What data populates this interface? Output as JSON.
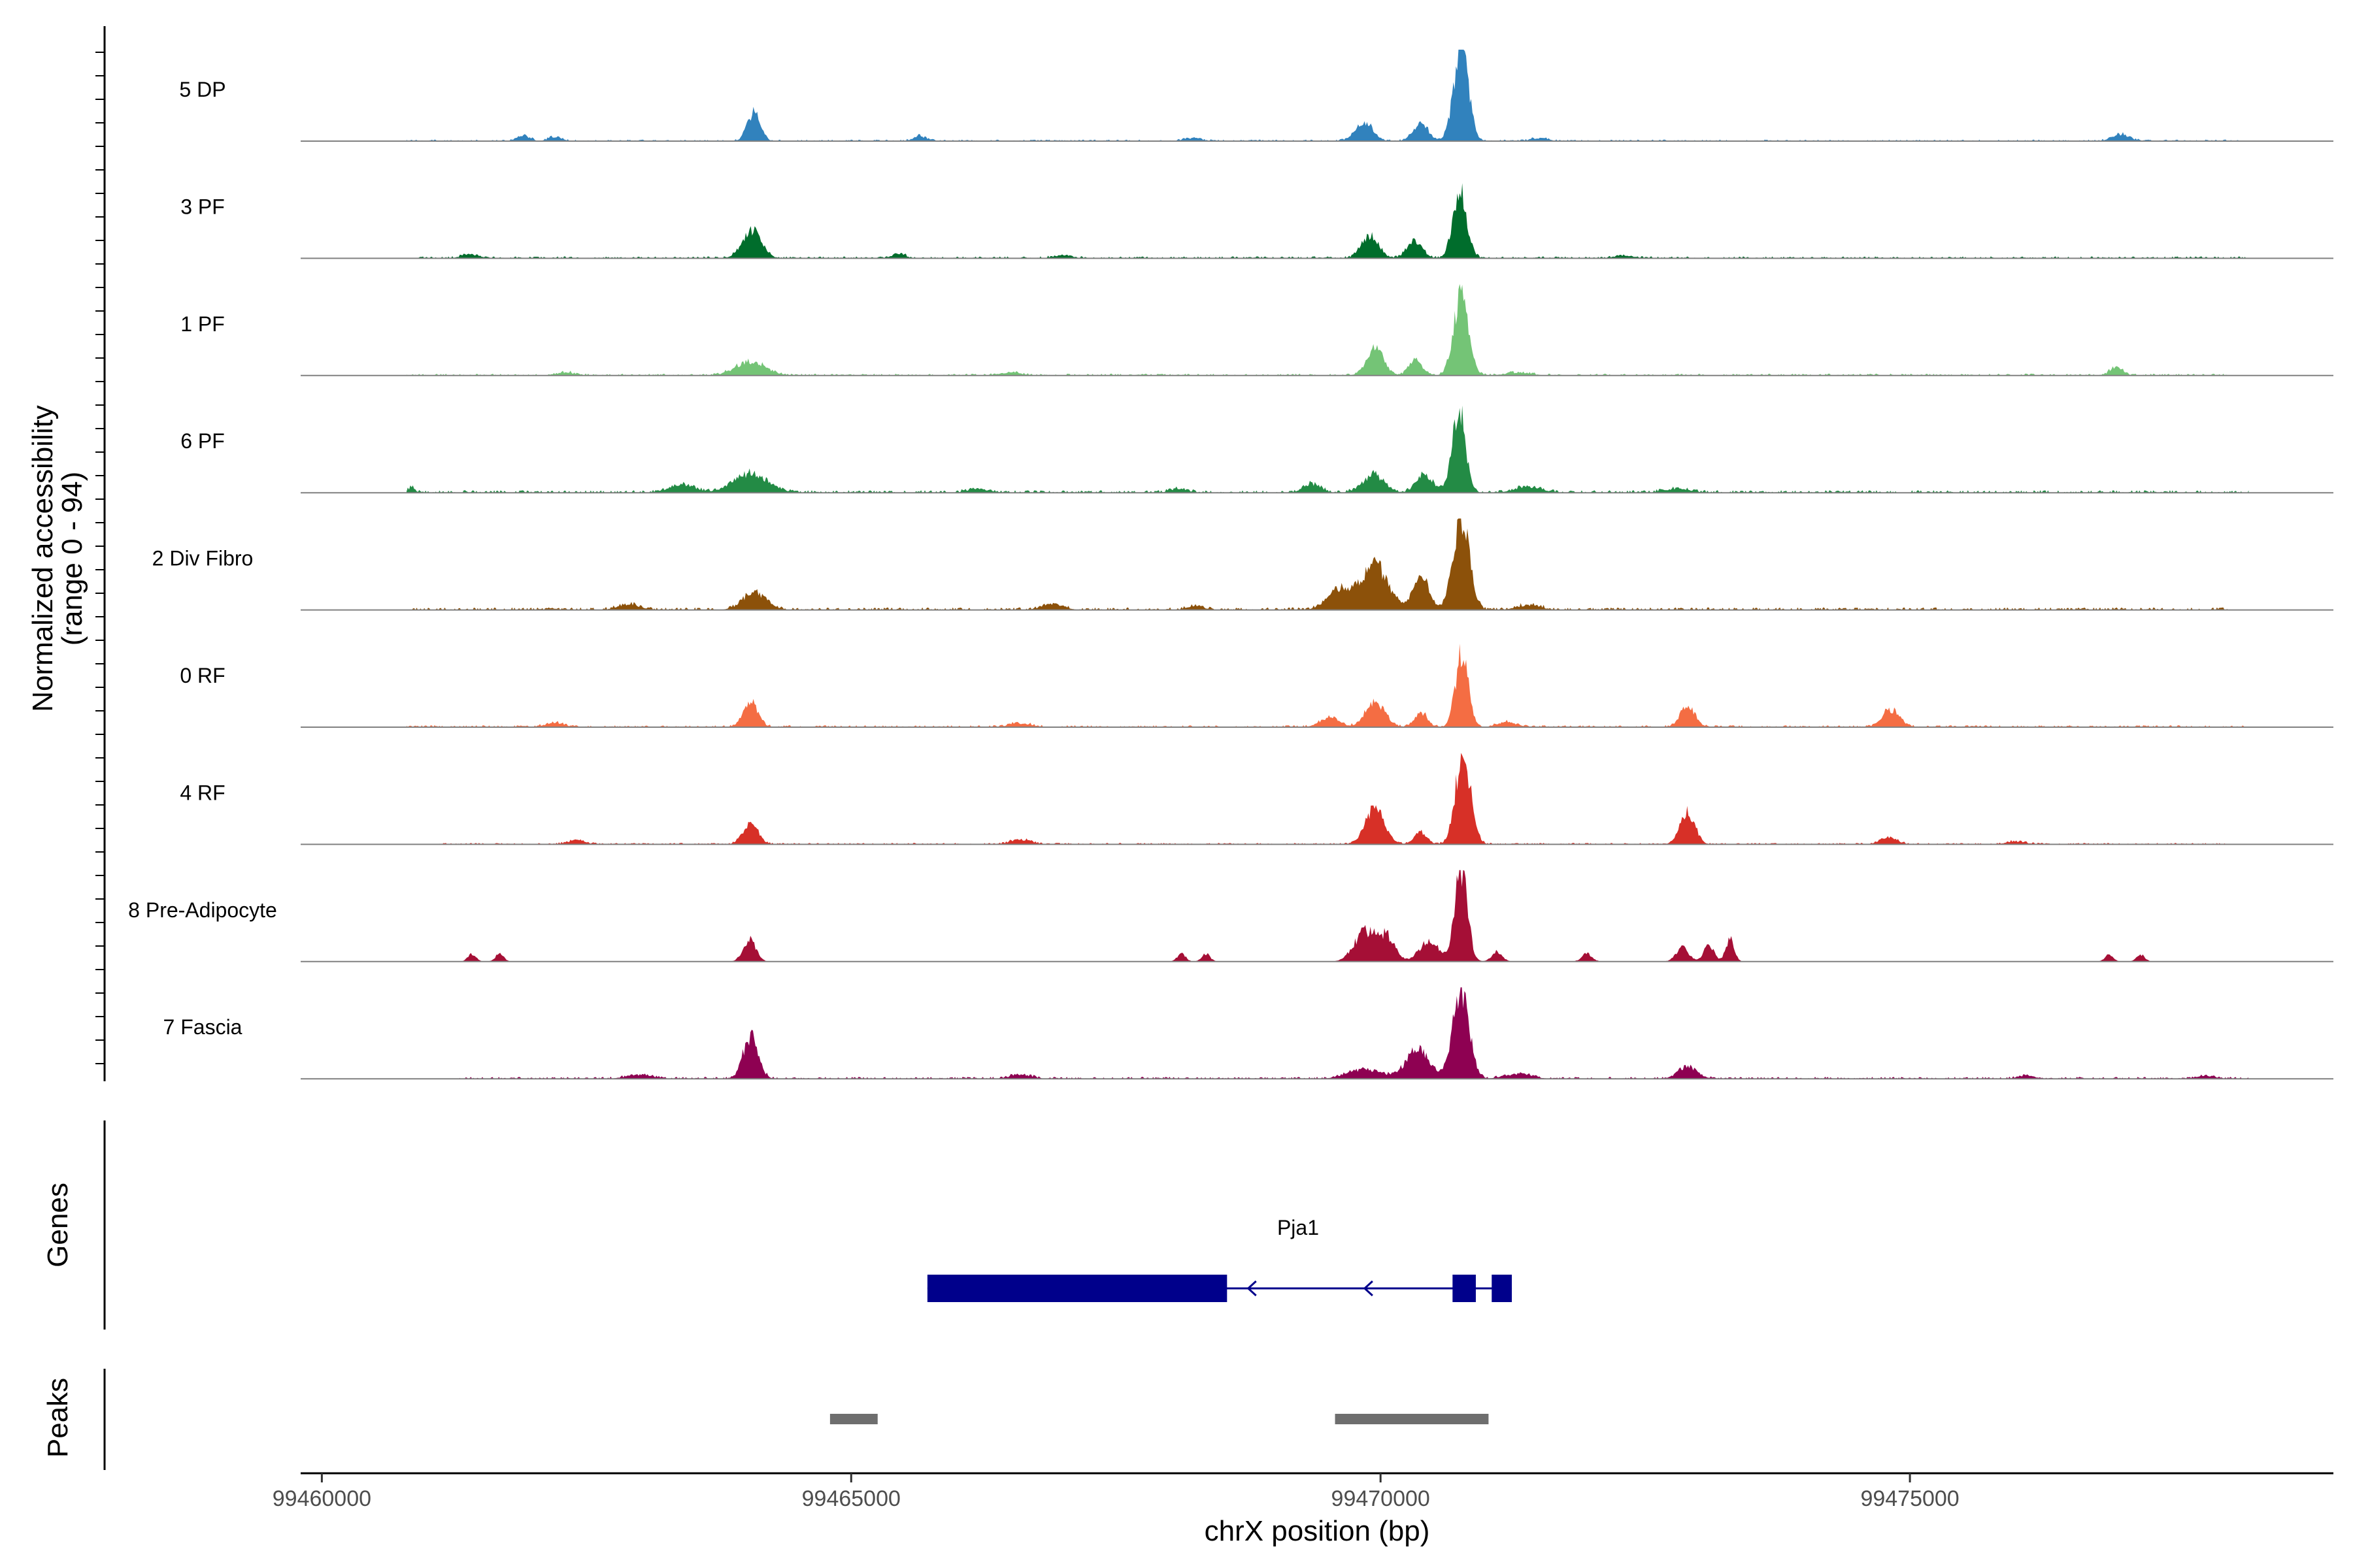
{
  "chart_data": {
    "type": "area",
    "title": "",
    "xlabel": "chrX position (bp)",
    "ylabel": "Normalized accessibility",
    "ylabel_range": "(range 0 - 94)",
    "xlim": [
      99459800,
      99479000
    ],
    "ylim": [
      0,
      94
    ],
    "x_ticks": [
      99460000,
      99465000,
      99470000,
      99475000
    ],
    "x_tick_labels": [
      "99460000",
      "99465000",
      "99470000",
      "99475000"
    ],
    "tracks": [
      {
        "name": "5 DP",
        "color": "#3182bd",
        "peaks": [
          [
            99464080,
            30,
            60
          ],
          [
            99469840,
            20,
            80
          ],
          [
            99470380,
            18,
            70
          ],
          [
            99470760,
            92,
            70
          ],
          [
            99461900,
            6,
            60
          ],
          [
            99476990,
            7,
            80
          ],
          [
            99465650,
            5,
            60
          ],
          [
            99468220,
            3,
            80
          ],
          [
            99471500,
            3,
            80
          ],
          [
            99462200,
            4,
            60
          ]
        ],
        "floor": 1.2,
        "range": [
          99460800,
          99478200
        ]
      },
      {
        "name": "3 PF",
        "color": "#006d2c",
        "peaks": [
          [
            99464060,
            28,
            90
          ],
          [
            99469900,
            22,
            80
          ],
          [
            99470320,
            18,
            70
          ],
          [
            99470750,
            68,
            65
          ],
          [
            99465450,
            5,
            60
          ],
          [
            99461400,
            4,
            80
          ],
          [
            99472300,
            3,
            90
          ],
          [
            99467000,
            3,
            80
          ]
        ],
        "floor": 1.5,
        "range": [
          99460800,
          99478200
        ]
      },
      {
        "name": "1 PF",
        "color": "#74c476",
        "peaks": [
          [
            99464050,
            14,
            140
          ],
          [
            99469950,
            28,
            80
          ],
          [
            99470330,
            16,
            60
          ],
          [
            99470760,
            82,
            70
          ],
          [
            99476950,
            8,
            60
          ],
          [
            99462300,
            3,
            90
          ],
          [
            99466500,
            3,
            100
          ],
          [
            99471300,
            3,
            120
          ]
        ],
        "floor": 1.5,
        "range": [
          99460800,
          99478000
        ]
      },
      {
        "name": "6 PF",
        "color": "#238b45",
        "peaks": [
          [
            99464050,
            20,
            160
          ],
          [
            99463400,
            8,
            120
          ],
          [
            99469930,
            18,
            100
          ],
          [
            99470420,
            18,
            80
          ],
          [
            99470740,
            90,
            60
          ],
          [
            99469350,
            9,
            80
          ],
          [
            99471400,
            6,
            120
          ],
          [
            99472800,
            4,
            120
          ],
          [
            99460850,
            6,
            30
          ],
          [
            99466200,
            4,
            100
          ],
          [
            99468100,
            4,
            80
          ]
        ],
        "floor": 2,
        "range": [
          99460800,
          99478200
        ]
      },
      {
        "name": "2 Div Fibro",
        "color": "#8c510a",
        "peaks": [
          [
            99464090,
            18,
            110
          ],
          [
            99469940,
            45,
            130
          ],
          [
            99469600,
            20,
            110
          ],
          [
            99470380,
            38,
            70
          ],
          [
            99470760,
            95,
            75
          ],
          [
            99471400,
            5,
            110
          ],
          [
            99462900,
            6,
            100
          ],
          [
            99466900,
            6,
            100
          ],
          [
            99468250,
            4,
            80
          ]
        ],
        "floor": 2,
        "range": [
          99460800,
          99478000
        ]
      },
      {
        "name": "0 RF",
        "color": "#f46d43",
        "peaks": [
          [
            99464050,
            25,
            70
          ],
          [
            99469950,
            25,
            90
          ],
          [
            99469520,
            10,
            90
          ],
          [
            99470380,
            15,
            60
          ],
          [
            99470770,
            75,
            60
          ],
          [
            99472900,
            22,
            70
          ],
          [
            99474820,
            18,
            80
          ],
          [
            99471200,
            5,
            90
          ],
          [
            99462200,
            4,
            90
          ],
          [
            99466600,
            4,
            100
          ]
        ],
        "floor": 1.5,
        "range": [
          99460800,
          99478200
        ]
      },
      {
        "name": "4 RF",
        "color": "#d73027",
        "peaks": [
          [
            99464050,
            22,
            70
          ],
          [
            99469950,
            38,
            90
          ],
          [
            99470380,
            12,
            60
          ],
          [
            99470780,
            95,
            70
          ],
          [
            99472900,
            32,
            70
          ],
          [
            99474800,
            7,
            80
          ],
          [
            99462400,
            4,
            80
          ],
          [
            99466600,
            5,
            90
          ],
          [
            99476000,
            3,
            90
          ]
        ],
        "floor": 1.2,
        "range": [
          99461100,
          99478000
        ]
      },
      {
        "name": "8 Pre-Adipocyte",
        "color": "#a50f36",
        "peaks": [
          [
            99464040,
            22,
            60
          ],
          [
            99469850,
            30,
            100
          ],
          [
            99470060,
            25,
            80
          ],
          [
            99470460,
            22,
            90
          ],
          [
            99470760,
            94,
            60
          ],
          [
            99471100,
            10,
            50
          ],
          [
            99472850,
            14,
            60
          ],
          [
            99473100,
            16,
            50
          ],
          [
            99473300,
            23,
            40
          ],
          [
            99461420,
            8,
            40
          ],
          [
            99461680,
            8,
            40
          ],
          [
            99468120,
            8,
            40
          ],
          [
            99468350,
            8,
            40
          ],
          [
            99471950,
            8,
            50
          ],
          [
            99476880,
            7,
            40
          ],
          [
            99477180,
            7,
            40
          ]
        ],
        "floor": 0,
        "range": [
          99461300,
          99477300
        ]
      },
      {
        "name": "7 Fascia",
        "color": "#8e0152",
        "peaks": [
          [
            99464050,
            42,
            70
          ],
          [
            99469850,
            10,
            150
          ],
          [
            99470350,
            30,
            110
          ],
          [
            99470760,
            95,
            75
          ],
          [
            99471300,
            5,
            120
          ],
          [
            99472900,
            12,
            90
          ],
          [
            99463000,
            4,
            120
          ],
          [
            99466600,
            4,
            100
          ],
          [
            99476100,
            3,
            80
          ],
          [
            99477800,
            3,
            90
          ]
        ],
        "floor": 1.5,
        "range": [
          99461300,
          99478200
        ]
      }
    ],
    "genes_panel_title": "Genes",
    "genes": [
      {
        "name": "Pja1",
        "strand": "-",
        "start": 99465720,
        "end": 99471240,
        "exons": [
          [
            99465720,
            99468550,
            1.0
          ],
          [
            99470680,
            99470900,
            1.0
          ],
          [
            99471050,
            99471240,
            1.0
          ]
        ],
        "arrows": [
          99468750,
          99469850
        ]
      }
    ],
    "gene_color": "#00008b",
    "peaks_panel_title": "Peaks",
    "peak_regions": [
      [
        99464800,
        99465250
      ],
      [
        99469570,
        99471020
      ]
    ],
    "peak_color": "#6e6e6e"
  }
}
